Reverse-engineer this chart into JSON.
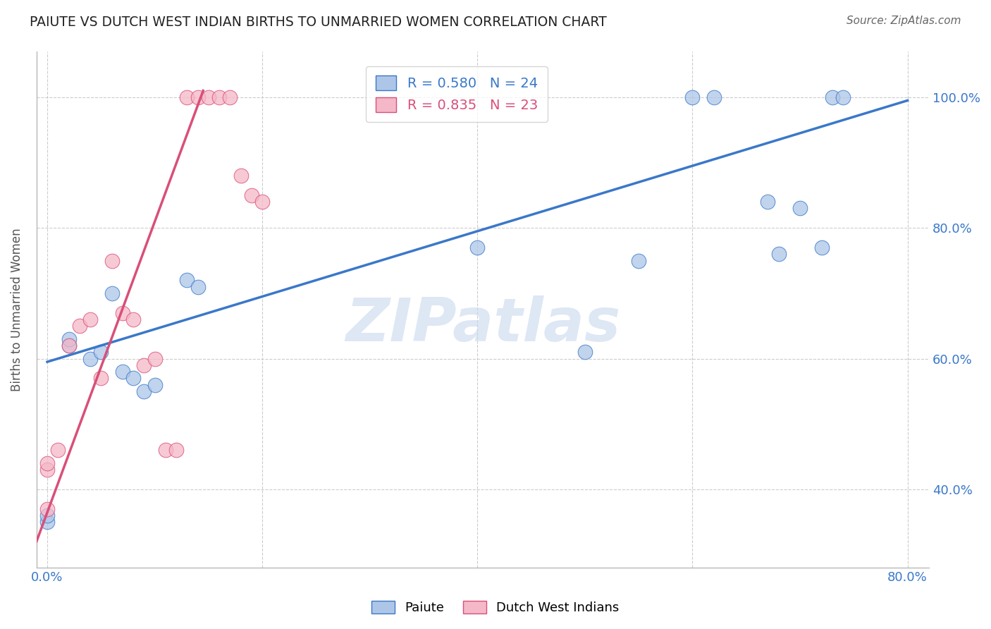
{
  "title": "PAIUTE VS DUTCH WEST INDIAN BIRTHS TO UNMARRIED WOMEN CORRELATION CHART",
  "source": "Source: ZipAtlas.com",
  "ylabel": "Births to Unmarried Women",
  "watermark": "ZIPatlas",
  "xlim": [
    -0.01,
    0.82
  ],
  "ylim": [
    0.28,
    1.07
  ],
  "xticks": [
    0.0,
    0.2,
    0.4,
    0.6,
    0.8
  ],
  "xtick_labels": [
    "0.0%",
    "",
    "",
    "",
    "80.0%"
  ],
  "ytick_labels": [
    "40.0%",
    "60.0%",
    "80.0%",
    "100.0%"
  ],
  "yticks": [
    0.4,
    0.6,
    0.8,
    1.0
  ],
  "blue_color": "#adc6e8",
  "pink_color": "#f5b8c8",
  "blue_line_color": "#3a78c9",
  "pink_line_color": "#d94f78",
  "legend_blue_label": "R = 0.580   N = 24",
  "legend_pink_label": "R = 0.835   N = 23",
  "background_color": "#ffffff",
  "grid_color": "#cccccc",
  "paiute_x": [
    0.0,
    0.0,
    0.02,
    0.02,
    0.04,
    0.05,
    0.06,
    0.07,
    0.08,
    0.09,
    0.1,
    0.13,
    0.14,
    0.4,
    0.5,
    0.55,
    0.6,
    0.62,
    0.67,
    0.68,
    0.7,
    0.72,
    0.73,
    0.74
  ],
  "paiute_y": [
    0.35,
    0.36,
    0.62,
    0.63,
    0.6,
    0.61,
    0.7,
    0.58,
    0.57,
    0.55,
    0.56,
    0.72,
    0.71,
    0.77,
    0.61,
    0.75,
    1.0,
    1.0,
    0.84,
    0.76,
    0.83,
    0.77,
    1.0,
    1.0
  ],
  "dutch_x": [
    0.0,
    0.0,
    0.0,
    0.01,
    0.02,
    0.03,
    0.04,
    0.05,
    0.06,
    0.07,
    0.08,
    0.09,
    0.1,
    0.11,
    0.12,
    0.13,
    0.14,
    0.15,
    0.16,
    0.17,
    0.18,
    0.19,
    0.2
  ],
  "dutch_y": [
    0.37,
    0.43,
    0.44,
    0.46,
    0.62,
    0.65,
    0.66,
    0.57,
    0.75,
    0.67,
    0.66,
    0.59,
    0.6,
    0.46,
    0.46,
    1.0,
    1.0,
    1.0,
    1.0,
    1.0,
    0.88,
    0.85,
    0.84
  ],
  "paiute_trend_x": [
    0.0,
    0.8
  ],
  "paiute_trend_y": [
    0.595,
    0.995
  ],
  "dutch_trend_x": [
    -0.01,
    0.145
  ],
  "dutch_trend_y": [
    0.32,
    1.01
  ]
}
